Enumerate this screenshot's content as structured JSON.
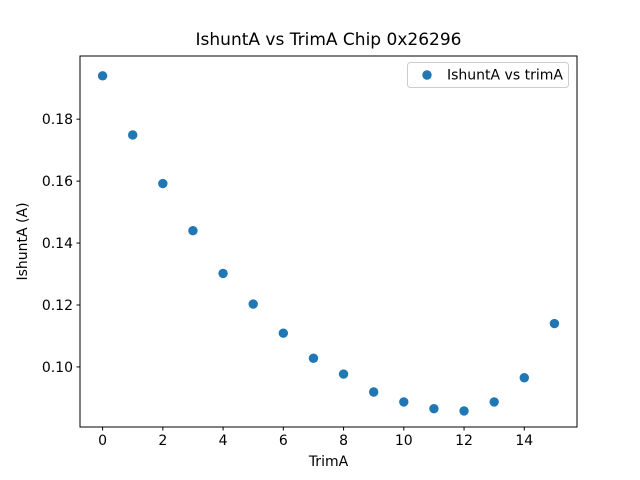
{
  "figure": {
    "background": "#ffffff",
    "frame_color": "#000000",
    "tick_color": "#000000",
    "legend_border_color": "#cccccc"
  },
  "chart_data": {
    "type": "scatter",
    "title": "IshuntA vs TrimA Chip 0x26296",
    "xlabel": "TrimA",
    "ylabel": "IshuntA (A)",
    "grid": false,
    "legend": {
      "position": "upper right",
      "entries": [
        "IshuntA vs trimA"
      ]
    },
    "xlim": [
      -0.75,
      15.75
    ],
    "ylim": [
      0.0806,
      0.2004
    ],
    "xticks": [
      0,
      2,
      4,
      6,
      8,
      10,
      12,
      14
    ],
    "xtick_labels": [
      "0",
      "2",
      "4",
      "6",
      "8",
      "10",
      "12",
      "14"
    ],
    "yticks": [
      0.1,
      0.12,
      0.14,
      0.16,
      0.18
    ],
    "ytick_labels": [
      "0.10",
      "0.12",
      "0.14",
      "0.16",
      "0.18"
    ],
    "series": [
      {
        "name": "IshuntA vs trimA",
        "color": "#1f77b4",
        "marker": "circle",
        "x": [
          0,
          1,
          2,
          3,
          4,
          5,
          6,
          7,
          8,
          9,
          10,
          11,
          12,
          13,
          14,
          15
        ],
        "y": [
          0.194,
          0.1749,
          0.1592,
          0.144,
          0.1302,
          0.1203,
          0.1109,
          0.1028,
          0.0977,
          0.0919,
          0.0887,
          0.0865,
          0.0858,
          0.0887,
          0.0965,
          0.114
        ]
      }
    ]
  }
}
